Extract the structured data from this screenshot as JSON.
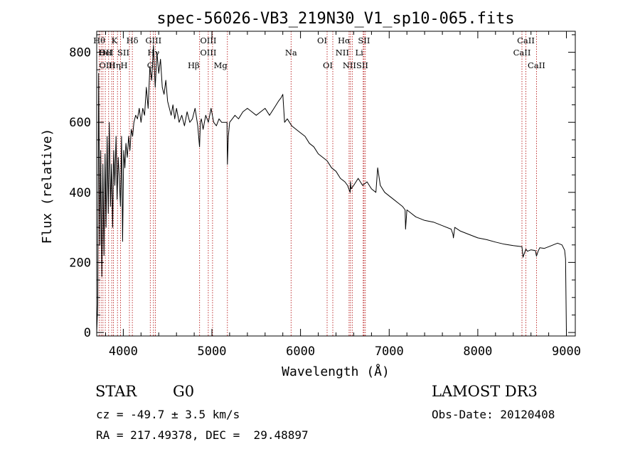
{
  "chart_data": {
    "type": "line",
    "title": "spec-56026-VB3_219N30_V1_sp10-065.fits",
    "xlabel": "Wavelength (Å)",
    "ylabel": "Flux (relative)",
    "xlim": [
      3700,
      9100
    ],
    "ylim": [
      -10,
      860
    ],
    "xticks": [
      4000,
      5000,
      6000,
      7000,
      8000,
      9000
    ],
    "yticks": [
      0,
      200,
      400,
      600,
      800
    ],
    "grid": false,
    "series": [
      {
        "name": "flux",
        "x": [
          3700,
          3712,
          3722,
          3735,
          3745,
          3758,
          3770,
          3782,
          3795,
          3805,
          3818,
          3830,
          3842,
          3855,
          3868,
          3880,
          3892,
          3905,
          3918,
          3930,
          3942,
          3955,
          3968,
          3980,
          3992,
          4005,
          4018,
          4030,
          4045,
          4060,
          4075,
          4090,
          4105,
          4120,
          4140,
          4160,
          4180,
          4200,
          4220,
          4240,
          4260,
          4280,
          4300,
          4320,
          4340,
          4360,
          4380,
          4400,
          4420,
          4440,
          4460,
          4480,
          4500,
          4520,
          4540,
          4560,
          4580,
          4600,
          4630,
          4660,
          4690,
          4720,
          4750,
          4780,
          4810,
          4840,
          4860,
          4870,
          4880,
          4900,
          4930,
          4960,
          4990,
          5020,
          5050,
          5080,
          5110,
          5140,
          5170,
          5175,
          5185,
          5200,
          5230,
          5260,
          5300,
          5350,
          5400,
          5450,
          5500,
          5550,
          5600,
          5650,
          5700,
          5750,
          5780,
          5800,
          5820,
          5850,
          5900,
          5950,
          6000,
          6050,
          6100,
          6150,
          6200,
          6250,
          6300,
          6350,
          6400,
          6450,
          6500,
          6530,
          6560,
          6563,
          6570,
          6600,
          6650,
          6700,
          6750,
          6800,
          6850,
          6870,
          6900,
          6950,
          7000,
          7050,
          7100,
          7150,
          7180,
          7185,
          7200,
          7250,
          7300,
          7400,
          7500,
          7600,
          7700,
          7720,
          7725,
          7740,
          7800,
          7900,
          8000,
          8100,
          8200,
          8300,
          8400,
          8498,
          8510,
          8542,
          8560,
          8600,
          8650,
          8662,
          8680,
          8700,
          8750,
          8800,
          8850,
          8900,
          8950,
          8980,
          8990,
          9000
        ],
        "values": [
          0,
          80,
          740,
          250,
          520,
          160,
          480,
          220,
          510,
          300,
          560,
          340,
          600,
          360,
          480,
          300,
          520,
          420,
          560,
          380,
          500,
          440,
          360,
          560,
          260,
          520,
          470,
          540,
          500,
          560,
          520,
          580,
          560,
          600,
          620,
          610,
          640,
          600,
          640,
          620,
          700,
          640,
          760,
          720,
          820,
          700,
          800,
          740,
          780,
          700,
          680,
          720,
          660,
          640,
          620,
          650,
          610,
          640,
          600,
          620,
          590,
          630,
          600,
          610,
          640,
          590,
          530,
          600,
          610,
          580,
          620,
          600,
          640,
          600,
          590,
          610,
          600,
          600,
          600,
          480,
          560,
          600,
          610,
          620,
          610,
          630,
          640,
          630,
          620,
          630,
          640,
          620,
          640,
          660,
          670,
          680,
          600,
          610,
          590,
          580,
          570,
          560,
          540,
          530,
          510,
          500,
          490,
          470,
          460,
          440,
          430,
          420,
          400,
          430,
          410,
          420,
          440,
          420,
          430,
          410,
          400,
          470,
          420,
          400,
          390,
          380,
          370,
          360,
          350,
          295,
          350,
          340,
          330,
          320,
          315,
          305,
          295,
          280,
          270,
          300,
          290,
          280,
          270,
          265,
          258,
          252,
          248,
          245,
          215,
          238,
          232,
          236,
          234,
          218,
          232,
          242,
          240,
          245,
          250,
          255,
          250,
          235,
          210,
          0
        ]
      }
    ],
    "line_labels": [
      {
        "text": "Hθ",
        "x": 3797,
        "row": 0,
        "anchor": "end"
      },
      {
        "text": "OII",
        "x": 3727,
        "row": 1,
        "anchor": "start"
      },
      {
        "text": "OIII",
        "x": 3727,
        "row": 2,
        "anchor": "start"
      },
      {
        "text": "K",
        "x": 3934,
        "row": 0,
        "anchor": "end"
      },
      {
        "text": "HeI",
        "x": 3889,
        "row": 1,
        "anchor": "end"
      },
      {
        "text": "Hη",
        "x": 3835,
        "row": 2,
        "anchor": "start"
      },
      {
        "text": "SII",
        "x": 4069,
        "row": 1,
        "anchor": "end"
      },
      {
        "text": "H",
        "x": 3969,
        "row": 2,
        "anchor": "start"
      },
      {
        "text": "Hδ",
        "x": 4102,
        "row": 0,
        "anchor": "middle"
      },
      {
        "text": "GIII",
        "x": 4340,
        "row": 0,
        "anchor": "middle"
      },
      {
        "text": "Hγ",
        "x": 4340,
        "row": 1,
        "anchor": "middle"
      },
      {
        "text": "G",
        "x": 4304,
        "row": 2,
        "anchor": "middle"
      },
      {
        "text": "OIII",
        "x": 4959,
        "row": 0,
        "anchor": "middle"
      },
      {
        "text": "OIII",
        "x": 4959,
        "row": 1,
        "anchor": "middle"
      },
      {
        "text": "Hβ",
        "x": 4861,
        "row": 2,
        "anchor": "end"
      },
      {
        "text": "Mg",
        "x": 5175,
        "row": 2,
        "anchor": "end"
      },
      {
        "text": "Na",
        "x": 5893,
        "row": 1,
        "anchor": "middle"
      },
      {
        "text": "OI",
        "x": 6300,
        "row": 0,
        "anchor": "end"
      },
      {
        "text": "OI",
        "x": 6364,
        "row": 2,
        "anchor": "end"
      },
      {
        "text": "Hα",
        "x": 6563,
        "row": 0,
        "anchor": "end"
      },
      {
        "text": "SII",
        "x": 6716,
        "row": 0,
        "anchor": "middle"
      },
      {
        "text": "NII",
        "x": 6548,
        "row": 1,
        "anchor": "end"
      },
      {
        "text": "Li",
        "x": 6707,
        "row": 1,
        "anchor": "end"
      },
      {
        "text": "NIISII",
        "x": 6620,
        "row": 2,
        "anchor": "middle"
      },
      {
        "text": "CaII",
        "x": 8542,
        "row": 0,
        "anchor": "middle"
      },
      {
        "text": "CaII",
        "x": 8498,
        "row": 1,
        "anchor": "middle"
      },
      {
        "text": "CaII",
        "x": 8662,
        "row": 2,
        "anchor": "middle"
      }
    ],
    "line_markers": [
      3727,
      3750,
      3771,
      3797,
      3835,
      3869,
      3889,
      3934,
      3969,
      4069,
      4102,
      4304,
      4340,
      4363,
      4861,
      4959,
      5007,
      5175,
      5893,
      6300,
      6364,
      6548,
      6563,
      6583,
      6707,
      6716,
      6731,
      8498,
      8542,
      8662
    ]
  },
  "info": {
    "class_label": "STAR",
    "subclass_label": "G0",
    "survey_label": "LAMOST DR3",
    "cz_text": "cz = -49.7 ± 3.5 km/s",
    "obs_date_text": "Obs-Date: 20120408",
    "coords_text": "RA = 217.49378, DEC =  29.48897"
  }
}
